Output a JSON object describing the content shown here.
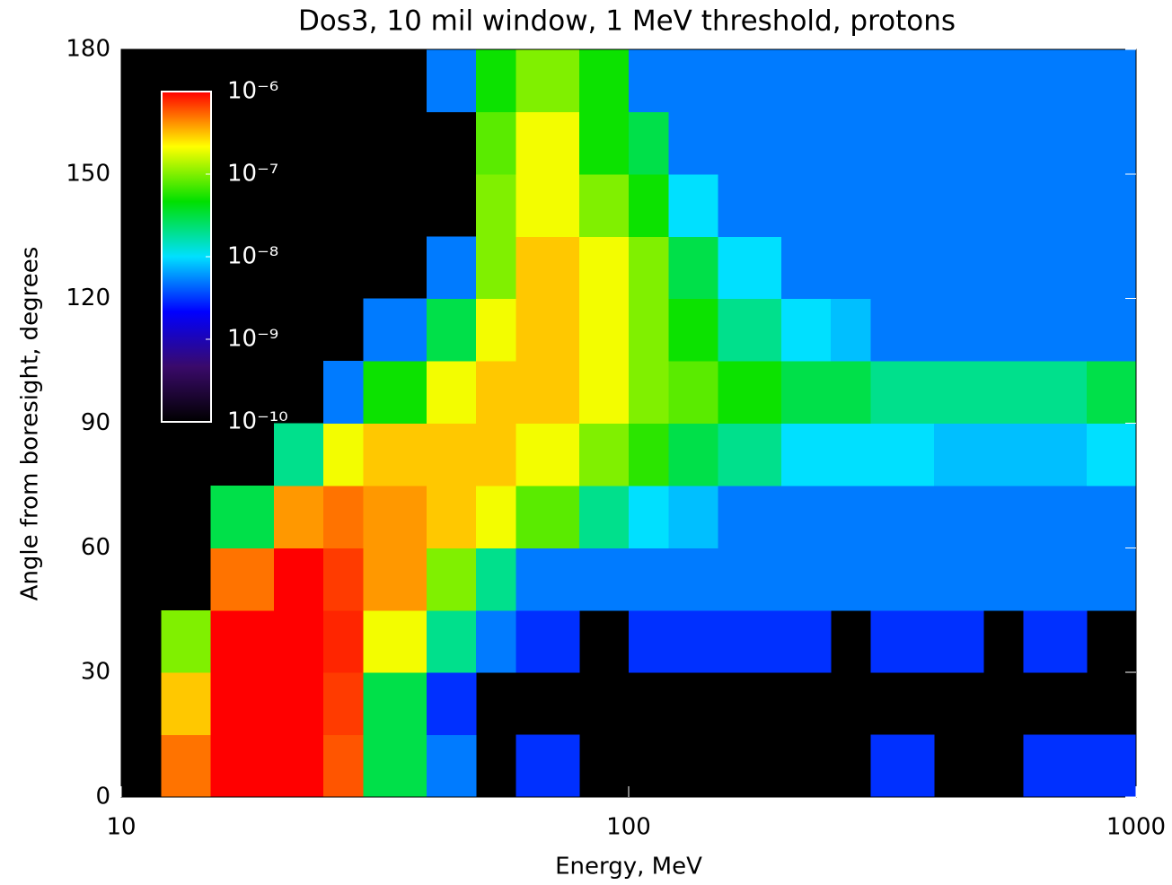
{
  "chart_data": {
    "type": "heatmap",
    "title": "Dos3, 10 mil window, 1 MeV threshold, protons",
    "xlabel": "Energy, MeV",
    "ylabel": "Angle from boresight, degrees",
    "xscale": "log",
    "xlim": [
      10,
      1000
    ],
    "xticks": [
      10,
      100,
      1000
    ],
    "ylim": [
      0,
      180
    ],
    "yticks": [
      0,
      30,
      60,
      90,
      120,
      150,
      180
    ],
    "xbins": [
      10,
      12,
      15,
      20,
      25,
      30,
      40,
      50,
      60,
      80,
      100,
      120,
      150,
      200,
      250,
      300,
      400,
      500,
      600,
      800,
      1000
    ],
    "ybins": [
      0,
      15,
      30,
      45,
      60,
      75,
      90,
      105,
      120,
      135,
      150,
      165,
      180
    ],
    "values": [
      [
        null,
        5e-07,
        1e-06,
        1e-06,
        6e-07,
        3e-08,
        5e-09,
        null,
        3e-09,
        null,
        null,
        null,
        null,
        null,
        null,
        3e-09,
        null,
        null,
        3e-09,
        3e-09
      ],
      [
        null,
        3e-07,
        1e-06,
        1e-06,
        7e-07,
        3e-08,
        3e-09,
        null,
        null,
        null,
        null,
        null,
        null,
        null,
        null,
        null,
        null,
        null,
        null,
        null
      ],
      [
        null,
        1e-07,
        1e-06,
        1e-06,
        8e-07,
        2e-07,
        2e-08,
        5e-09,
        3e-09,
        null,
        3e-09,
        3e-09,
        3e-09,
        3e-09,
        null,
        3e-09,
        3e-09,
        null,
        3e-09,
        null
      ],
      [
        null,
        null,
        5e-07,
        1e-06,
        7e-07,
        4e-07,
        1e-07,
        2e-08,
        5e-09,
        5e-09,
        5e-09,
        5e-09,
        5e-09,
        5e-09,
        5e-09,
        5e-09,
        5e-09,
        5e-09,
        5e-09,
        5e-09
      ],
      [
        null,
        null,
        3e-08,
        4e-07,
        5e-07,
        4e-07,
        3e-07,
        2e-07,
        8e-08,
        2e-08,
        1e-08,
        8e-09,
        5e-09,
        5e-09,
        5e-09,
        5e-09,
        5e-09,
        5e-09,
        5e-09,
        5e-09
      ],
      [
        null,
        null,
        null,
        2e-08,
        2e-07,
        3e-07,
        3e-07,
        3e-07,
        2e-07,
        1e-07,
        6e-08,
        3e-08,
        2e-08,
        1e-08,
        1e-08,
        1e-08,
        8e-09,
        8e-09,
        8e-09,
        1e-08
      ],
      [
        null,
        null,
        null,
        null,
        5e-09,
        5e-08,
        2e-07,
        3e-07,
        3e-07,
        2e-07,
        1e-07,
        8e-08,
        5e-08,
        3e-08,
        3e-08,
        2e-08,
        2e-08,
        2e-08,
        2e-08,
        3e-08
      ],
      [
        null,
        null,
        null,
        null,
        null,
        5e-09,
        3e-08,
        2e-07,
        3e-07,
        2e-07,
        1e-07,
        5e-08,
        2e-08,
        1e-08,
        8e-09,
        5e-09,
        5e-09,
        5e-09,
        5e-09,
        5e-09
      ],
      [
        null,
        null,
        null,
        null,
        null,
        null,
        5e-09,
        1e-07,
        3e-07,
        2e-07,
        1e-07,
        3e-08,
        1e-08,
        5e-09,
        5e-09,
        5e-09,
        5e-09,
        5e-09,
        5e-09,
        5e-09
      ],
      [
        null,
        null,
        null,
        null,
        null,
        null,
        null,
        1e-07,
        2e-07,
        1e-07,
        5e-08,
        1e-08,
        5e-09,
        5e-09,
        5e-09,
        5e-09,
        5e-09,
        5e-09,
        5e-09,
        5e-09
      ],
      [
        null,
        null,
        null,
        null,
        null,
        null,
        null,
        8e-08,
        2e-07,
        5e-08,
        3e-08,
        5e-09,
        5e-09,
        5e-09,
        5e-09,
        5e-09,
        5e-09,
        5e-09,
        5e-09,
        5e-09
      ],
      [
        null,
        null,
        null,
        null,
        null,
        null,
        5e-09,
        5e-08,
        1e-07,
        5e-08,
        5e-09,
        5e-09,
        5e-09,
        5e-09,
        5e-09,
        5e-09,
        5e-09,
        5e-09,
        5e-09,
        5e-09
      ]
    ],
    "clim": [
      1e-10,
      1e-06
    ],
    "cticks": [
      {
        "value": 1e-06,
        "label": "10⁻⁶"
      },
      {
        "value": 1e-07,
        "label": "10⁻⁷"
      },
      {
        "value": 1e-08,
        "label": "10⁻⁸"
      },
      {
        "value": 1e-09,
        "label": "10⁻⁹"
      },
      {
        "value": 1e-10,
        "label": "10⁻¹⁰"
      }
    ],
    "colormap": [
      "#000000",
      "#3a0a6a",
      "#0000ff",
      "#00e0ff",
      "#00e000",
      "#ffff00",
      "#ff0000"
    ]
  }
}
